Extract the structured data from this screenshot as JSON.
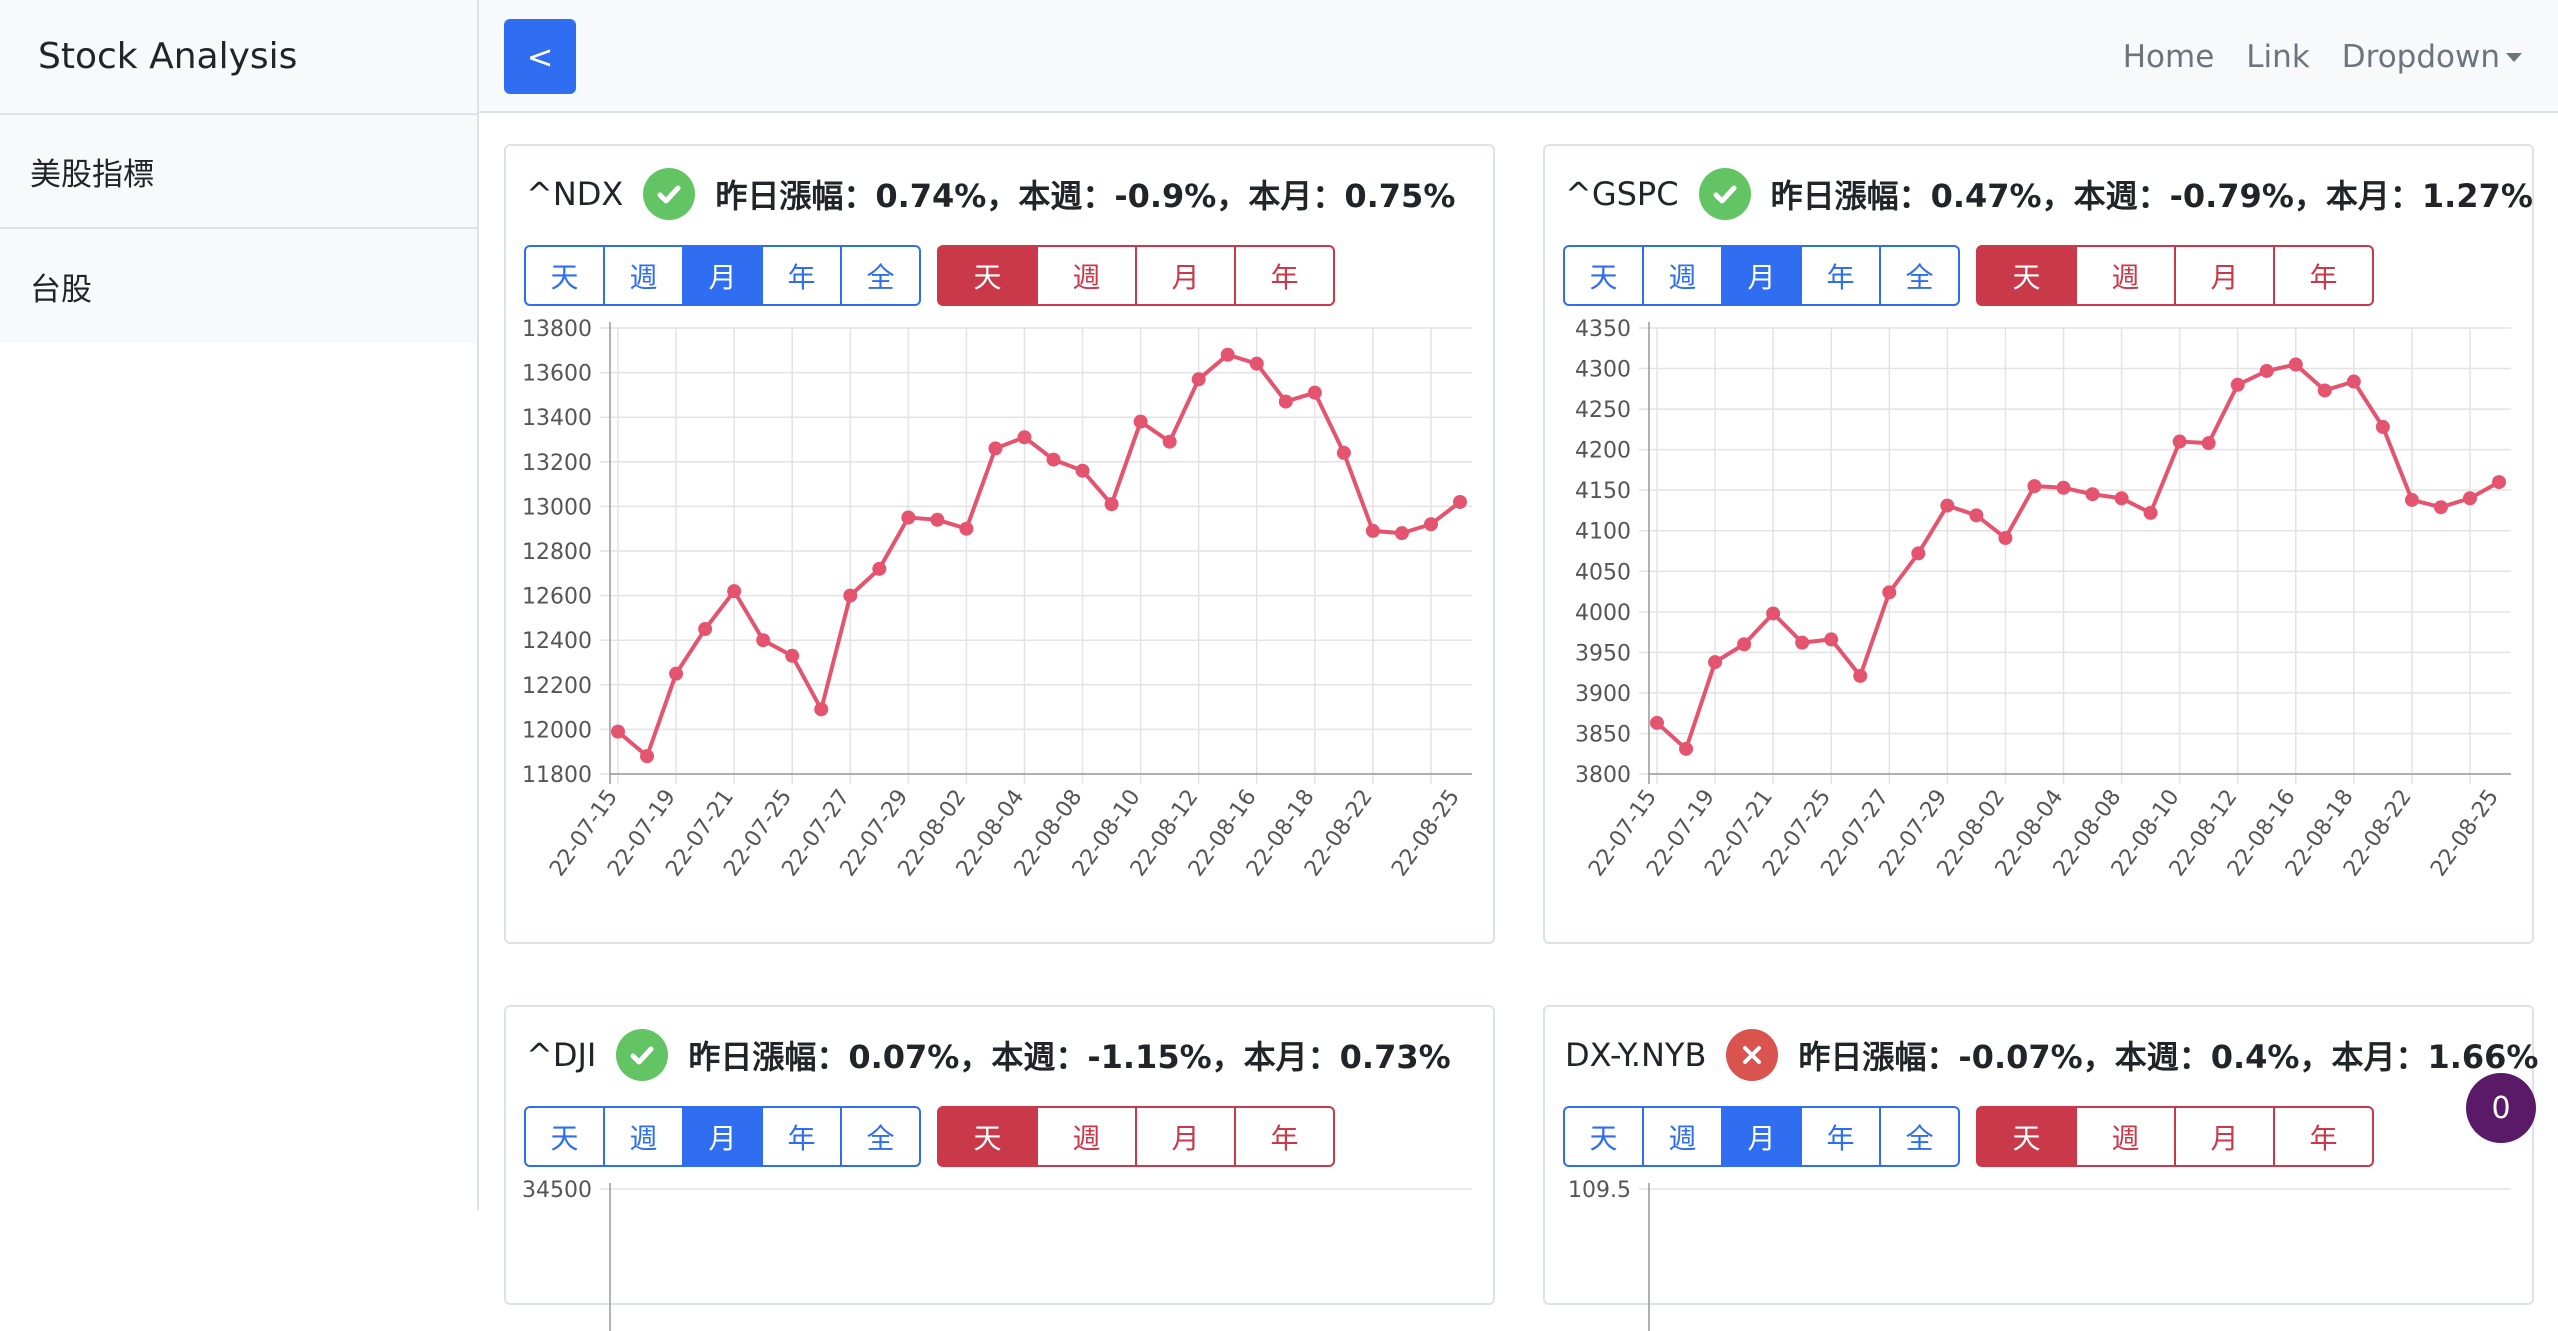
{
  "app": {
    "title": "Stock Analysis"
  },
  "sidebar": {
    "items": [
      {
        "label": "美股指標"
      },
      {
        "label": "台股"
      }
    ]
  },
  "navbar": {
    "toggle_label": "<",
    "links": [
      {
        "label": "Home"
      },
      {
        "label": "Link"
      },
      {
        "label": "Dropdown"
      }
    ]
  },
  "range_buttons": [
    "天",
    "週",
    "月",
    "年",
    "全"
  ],
  "interval_buttons": [
    "天",
    "週",
    "月",
    "年"
  ],
  "colors": {
    "primary": "#2f6ef0",
    "danger": "#c9394a",
    "line": "#e5546f",
    "ok": "#62c462",
    "bad": "#d9534f",
    "badge": "#5b1a68"
  },
  "cards": [
    {
      "symbol": "^NDX",
      "status": "check-circle-icon",
      "stats": "昨日漲幅：0.74%，本週：-0.9%，本月：0.75%"
    },
    {
      "symbol": "^GSPC",
      "status": "check-circle-icon",
      "stats": "昨日漲幅：0.47%，本週：-0.79%，本月：1.27%"
    },
    {
      "symbol": "^DJI",
      "status": "check-circle-icon",
      "stats": "昨日漲幅：0.07%，本週：-1.15%，本月：0.73%"
    },
    {
      "symbol": "DX-Y.NYB",
      "status": "x-circle-icon",
      "stats": "昨日漲幅：-0.07%，本週：0.4%，本月：1.66%"
    }
  ],
  "badge": {
    "count": "0"
  },
  "chart_data": [
    {
      "type": "line",
      "x_tick_labels": [
        "22-07-15",
        "22-07-19",
        "22-07-21",
        "22-07-25",
        "22-07-27",
        "22-07-29",
        "22-08-02",
        "22-08-04",
        "22-08-08",
        "22-08-10",
        "22-08-12",
        "22-08-16",
        "22-08-18",
        "22-08-22",
        "22-08-25"
      ],
      "values": [
        11990,
        11880,
        12250,
        12450,
        12620,
        12400,
        12330,
        12090,
        12600,
        12720,
        12950,
        12940,
        12900,
        13260,
        13310,
        13210,
        13160,
        13010,
        13380,
        13290,
        13570,
        13680,
        13640,
        13470,
        13510,
        13240,
        12890,
        12880,
        12920,
        13020
      ],
      "y_ticks": [
        11800,
        12000,
        12200,
        12400,
        12600,
        12800,
        13000,
        13200,
        13400,
        13600,
        13800
      ],
      "ylim": [
        11800,
        13800
      ],
      "grid": true
    },
    {
      "type": "line",
      "x_tick_labels": [
        "22-07-15",
        "22-07-19",
        "22-07-21",
        "22-07-25",
        "22-07-27",
        "22-07-29",
        "22-08-02",
        "22-08-04",
        "22-08-08",
        "22-08-10",
        "22-08-12",
        "22-08-16",
        "22-08-18",
        "22-08-22",
        "22-08-25"
      ],
      "values": [
        3863,
        3831,
        3938,
        3960,
        3998,
        3962,
        3966,
        3921,
        4024,
        4072,
        4131,
        4119,
        4091,
        4155,
        4153,
        4145,
        4140,
        4122,
        4210,
        4208,
        4280,
        4297,
        4305,
        4273,
        4284,
        4228,
        4138,
        4129,
        4140,
        4160
      ],
      "y_ticks": [
        3800,
        3850,
        3900,
        3950,
        4000,
        4050,
        4100,
        4150,
        4200,
        4250,
        4300,
        4350
      ],
      "ylim": [
        3800,
        4350
      ],
      "grid": true
    },
    {
      "type": "line",
      "y_ticks": [
        34500
      ],
      "ylim": [
        30000,
        34500
      ],
      "grid": true
    },
    {
      "type": "line",
      "y_ticks": [
        109.5
      ],
      "ylim": [
        100,
        109.5
      ],
      "grid": true
    }
  ]
}
